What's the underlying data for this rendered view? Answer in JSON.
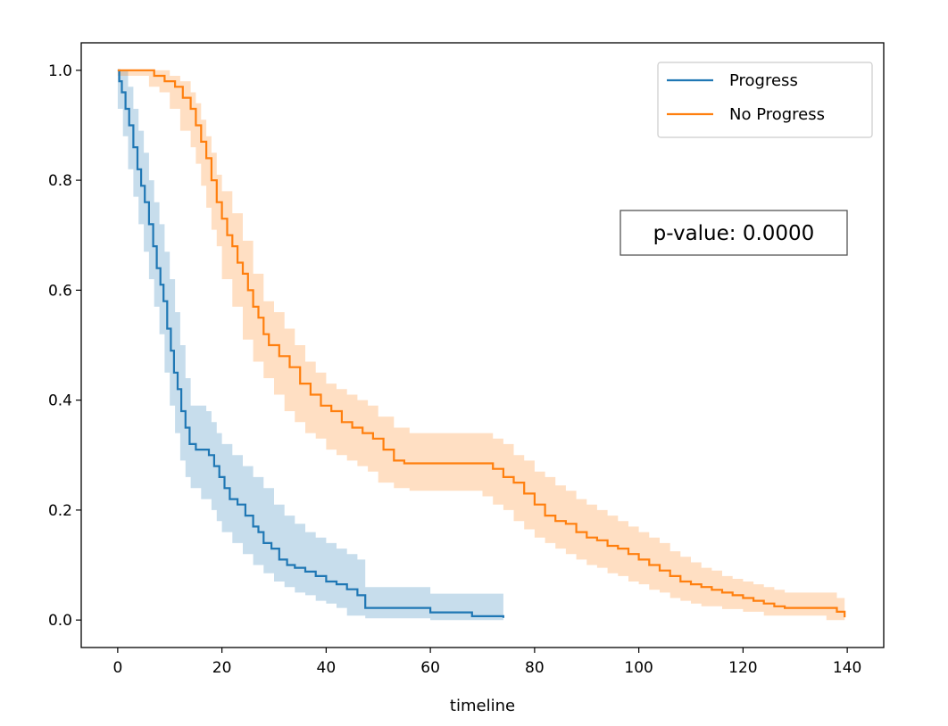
{
  "chart_data": {
    "type": "line",
    "subtype": "kaplan-meier survival with confidence bands",
    "title": "",
    "xlabel": "timeline",
    "ylabel": "",
    "xlim": [
      -7,
      147
    ],
    "ylim": [
      -0.05,
      1.05
    ],
    "xticks": [
      0,
      20,
      40,
      60,
      80,
      100,
      120,
      140
    ],
    "yticks": [
      0.0,
      0.2,
      0.4,
      0.6,
      0.8,
      1.0
    ],
    "xtick_labels": [
      "0",
      "20",
      "40",
      "60",
      "80",
      "100",
      "120",
      "140"
    ],
    "ytick_labels": [
      "0.0",
      "0.2",
      "0.4",
      "0.6",
      "0.8",
      "1.0"
    ],
    "grid": false,
    "legend_position": "top-right",
    "annotation": {
      "text": "p-value: 0.0000",
      "position": "right-middle",
      "boxed": true
    },
    "series": [
      {
        "name": "Progress",
        "color": "#1f77b4",
        "band_color": "#1f77b4",
        "points": [
          [
            0,
            1.0
          ],
          [
            0.3,
            0.98
          ],
          [
            0.8,
            0.96
          ],
          [
            1.5,
            0.93
          ],
          [
            2.2,
            0.9
          ],
          [
            3,
            0.86
          ],
          [
            3.8,
            0.82
          ],
          [
            4.5,
            0.79
          ],
          [
            5.2,
            0.76
          ],
          [
            6,
            0.72
          ],
          [
            6.8,
            0.68
          ],
          [
            7.5,
            0.64
          ],
          [
            8.2,
            0.61
          ],
          [
            8.8,
            0.58
          ],
          [
            9.5,
            0.53
          ],
          [
            10.2,
            0.49
          ],
          [
            10.8,
            0.45
          ],
          [
            11.5,
            0.42
          ],
          [
            12.2,
            0.38
          ],
          [
            13,
            0.35
          ],
          [
            13.8,
            0.32
          ],
          [
            15,
            0.31
          ],
          [
            17.5,
            0.3
          ],
          [
            18.5,
            0.28
          ],
          [
            19.5,
            0.26
          ],
          [
            20.5,
            0.24
          ],
          [
            21.5,
            0.22
          ],
          [
            23,
            0.21
          ],
          [
            24.5,
            0.19
          ],
          [
            26,
            0.17
          ],
          [
            27,
            0.16
          ],
          [
            28,
            0.14
          ],
          [
            29.5,
            0.13
          ],
          [
            31,
            0.11
          ],
          [
            32.5,
            0.1
          ],
          [
            34,
            0.095
          ],
          [
            36,
            0.088
          ],
          [
            38,
            0.08
          ],
          [
            40,
            0.07
          ],
          [
            42,
            0.065
          ],
          [
            44,
            0.056
          ],
          [
            46,
            0.045
          ],
          [
            47.5,
            0.022
          ],
          [
            55,
            0.022
          ],
          [
            60,
            0.014
          ],
          [
            66,
            0.014
          ],
          [
            68,
            0.007
          ],
          [
            74,
            0.004
          ]
        ],
        "lower": [
          [
            0,
            0.99
          ],
          [
            1,
            0.93
          ],
          [
            2,
            0.88
          ],
          [
            3,
            0.82
          ],
          [
            4,
            0.77
          ],
          [
            5,
            0.72
          ],
          [
            6,
            0.67
          ],
          [
            7,
            0.62
          ],
          [
            8,
            0.57
          ],
          [
            9,
            0.52
          ],
          [
            10,
            0.45
          ],
          [
            11,
            0.39
          ],
          [
            12,
            0.34
          ],
          [
            13,
            0.29
          ],
          [
            14,
            0.26
          ],
          [
            16,
            0.24
          ],
          [
            18,
            0.22
          ],
          [
            19,
            0.2
          ],
          [
            20,
            0.18
          ],
          [
            22,
            0.16
          ],
          [
            24,
            0.14
          ],
          [
            26,
            0.12
          ],
          [
            28,
            0.1
          ],
          [
            30,
            0.085
          ],
          [
            32,
            0.07
          ],
          [
            34,
            0.06
          ],
          [
            36,
            0.05
          ],
          [
            38,
            0.045
          ],
          [
            40,
            0.035
          ],
          [
            42,
            0.03
          ],
          [
            44,
            0.022
          ],
          [
            47.5,
            0.008
          ],
          [
            60,
            0.003
          ],
          [
            74,
            0.0
          ]
        ],
        "upper": [
          [
            0,
            1.0
          ],
          [
            1,
            1.0
          ],
          [
            2,
            0.97
          ],
          [
            3,
            0.93
          ],
          [
            4,
            0.89
          ],
          [
            5,
            0.85
          ],
          [
            6,
            0.8
          ],
          [
            7,
            0.76
          ],
          [
            8,
            0.72
          ],
          [
            9,
            0.67
          ],
          [
            10,
            0.62
          ],
          [
            11,
            0.56
          ],
          [
            12,
            0.5
          ],
          [
            13,
            0.44
          ],
          [
            14,
            0.39
          ],
          [
            17,
            0.38
          ],
          [
            18,
            0.36
          ],
          [
            19,
            0.34
          ],
          [
            20,
            0.32
          ],
          [
            22,
            0.3
          ],
          [
            24,
            0.28
          ],
          [
            26,
            0.26
          ],
          [
            28,
            0.24
          ],
          [
            30,
            0.21
          ],
          [
            32,
            0.19
          ],
          [
            34,
            0.175
          ],
          [
            36,
            0.16
          ],
          [
            38,
            0.15
          ],
          [
            40,
            0.14
          ],
          [
            42,
            0.13
          ],
          [
            44,
            0.12
          ],
          [
            46,
            0.11
          ],
          [
            47.5,
            0.06
          ],
          [
            60,
            0.048
          ],
          [
            74,
            0.035
          ]
        ]
      },
      {
        "name": "No Progress",
        "color": "#ff7f0e",
        "band_color": "#ff7f0e",
        "points": [
          [
            0,
            1.0
          ],
          [
            6,
            1.0
          ],
          [
            7,
            0.99
          ],
          [
            9,
            0.98
          ],
          [
            11,
            0.97
          ],
          [
            12.5,
            0.95
          ],
          [
            14,
            0.93
          ],
          [
            15,
            0.9
          ],
          [
            16,
            0.87
          ],
          [
            17,
            0.84
          ],
          [
            18,
            0.8
          ],
          [
            19,
            0.76
          ],
          [
            20,
            0.73
          ],
          [
            21,
            0.7
          ],
          [
            22,
            0.68
          ],
          [
            23,
            0.65
          ],
          [
            24,
            0.63
          ],
          [
            25,
            0.6
          ],
          [
            26,
            0.57
          ],
          [
            27,
            0.55
          ],
          [
            28,
            0.52
          ],
          [
            29,
            0.5
          ],
          [
            31,
            0.48
          ],
          [
            33,
            0.46
          ],
          [
            35,
            0.43
          ],
          [
            37,
            0.41
          ],
          [
            39,
            0.39
          ],
          [
            41,
            0.38
          ],
          [
            43,
            0.36
          ],
          [
            45,
            0.35
          ],
          [
            47,
            0.34
          ],
          [
            49,
            0.33
          ],
          [
            51,
            0.31
          ],
          [
            53,
            0.29
          ],
          [
            55,
            0.285
          ],
          [
            59,
            0.285
          ],
          [
            70,
            0.285
          ],
          [
            72,
            0.275
          ],
          [
            74,
            0.26
          ],
          [
            76,
            0.25
          ],
          [
            78,
            0.23
          ],
          [
            80,
            0.21
          ],
          [
            82,
            0.19
          ],
          [
            84,
            0.18
          ],
          [
            86,
            0.175
          ],
          [
            88,
            0.16
          ],
          [
            90,
            0.15
          ],
          [
            92,
            0.145
          ],
          [
            94,
            0.135
          ],
          [
            96,
            0.13
          ],
          [
            98,
            0.12
          ],
          [
            100,
            0.11
          ],
          [
            102,
            0.1
          ],
          [
            104,
            0.09
          ],
          [
            106,
            0.08
          ],
          [
            108,
            0.07
          ],
          [
            110,
            0.065
          ],
          [
            112,
            0.06
          ],
          [
            114,
            0.055
          ],
          [
            116,
            0.05
          ],
          [
            118,
            0.045
          ],
          [
            120,
            0.04
          ],
          [
            122,
            0.035
          ],
          [
            124,
            0.03
          ],
          [
            126,
            0.025
          ],
          [
            128,
            0.022
          ],
          [
            136,
            0.022
          ],
          [
            138,
            0.015
          ],
          [
            139.5,
            0.005
          ]
        ],
        "lower": [
          [
            0,
            1.0
          ],
          [
            6,
            0.99
          ],
          [
            8,
            0.97
          ],
          [
            10,
            0.96
          ],
          [
            12,
            0.93
          ],
          [
            14,
            0.89
          ],
          [
            15,
            0.86
          ],
          [
            16,
            0.83
          ],
          [
            17,
            0.79
          ],
          [
            18,
            0.75
          ],
          [
            19,
            0.71
          ],
          [
            20,
            0.68
          ],
          [
            22,
            0.62
          ],
          [
            24,
            0.57
          ],
          [
            26,
            0.51
          ],
          [
            28,
            0.47
          ],
          [
            30,
            0.44
          ],
          [
            32,
            0.41
          ],
          [
            34,
            0.38
          ],
          [
            36,
            0.36
          ],
          [
            38,
            0.34
          ],
          [
            40,
            0.33
          ],
          [
            42,
            0.31
          ],
          [
            44,
            0.3
          ],
          [
            46,
            0.29
          ],
          [
            48,
            0.28
          ],
          [
            50,
            0.27
          ],
          [
            53,
            0.25
          ],
          [
            56,
            0.24
          ],
          [
            70,
            0.235
          ],
          [
            72,
            0.225
          ],
          [
            74,
            0.21
          ],
          [
            76,
            0.2
          ],
          [
            78,
            0.18
          ],
          [
            80,
            0.165
          ],
          [
            82,
            0.15
          ],
          [
            84,
            0.14
          ],
          [
            86,
            0.13
          ],
          [
            88,
            0.12
          ],
          [
            90,
            0.11
          ],
          [
            92,
            0.1
          ],
          [
            94,
            0.095
          ],
          [
            96,
            0.085
          ],
          [
            98,
            0.08
          ],
          [
            100,
            0.07
          ],
          [
            102,
            0.065
          ],
          [
            104,
            0.055
          ],
          [
            106,
            0.05
          ],
          [
            108,
            0.04
          ],
          [
            110,
            0.035
          ],
          [
            112,
            0.03
          ],
          [
            116,
            0.025
          ],
          [
            120,
            0.02
          ],
          [
            124,
            0.015
          ],
          [
            128,
            0.008
          ],
          [
            136,
            0.008
          ],
          [
            139.5,
            0.0
          ]
        ],
        "upper": [
          [
            0,
            1.0
          ],
          [
            6,
            1.0
          ],
          [
            8,
            1.0
          ],
          [
            10,
            0.99
          ],
          [
            12,
            0.98
          ],
          [
            14,
            0.96
          ],
          [
            15,
            0.94
          ],
          [
            16,
            0.91
          ],
          [
            17,
            0.88
          ],
          [
            18,
            0.85
          ],
          [
            19,
            0.81
          ],
          [
            20,
            0.78
          ],
          [
            22,
            0.74
          ],
          [
            24,
            0.69
          ],
          [
            26,
            0.63
          ],
          [
            28,
            0.58
          ],
          [
            30,
            0.56
          ],
          [
            32,
            0.53
          ],
          [
            34,
            0.5
          ],
          [
            36,
            0.47
          ],
          [
            38,
            0.45
          ],
          [
            40,
            0.43
          ],
          [
            42,
            0.42
          ],
          [
            44,
            0.41
          ],
          [
            46,
            0.4
          ],
          [
            48,
            0.39
          ],
          [
            50,
            0.37
          ],
          [
            53,
            0.35
          ],
          [
            56,
            0.34
          ],
          [
            70,
            0.34
          ],
          [
            72,
            0.33
          ],
          [
            74,
            0.32
          ],
          [
            76,
            0.3
          ],
          [
            78,
            0.29
          ],
          [
            80,
            0.27
          ],
          [
            82,
            0.26
          ],
          [
            84,
            0.245
          ],
          [
            86,
            0.235
          ],
          [
            88,
            0.22
          ],
          [
            90,
            0.21
          ],
          [
            92,
            0.2
          ],
          [
            94,
            0.19
          ],
          [
            96,
            0.18
          ],
          [
            98,
            0.17
          ],
          [
            100,
            0.16
          ],
          [
            102,
            0.15
          ],
          [
            104,
            0.14
          ],
          [
            106,
            0.125
          ],
          [
            108,
            0.115
          ],
          [
            110,
            0.105
          ],
          [
            112,
            0.095
          ],
          [
            114,
            0.09
          ],
          [
            116,
            0.08
          ],
          [
            118,
            0.075
          ],
          [
            120,
            0.07
          ],
          [
            122,
            0.065
          ],
          [
            124,
            0.06
          ],
          [
            126,
            0.055
          ],
          [
            128,
            0.05
          ],
          [
            136,
            0.05
          ],
          [
            138,
            0.04
          ],
          [
            139.5,
            0.02
          ]
        ]
      }
    ]
  }
}
